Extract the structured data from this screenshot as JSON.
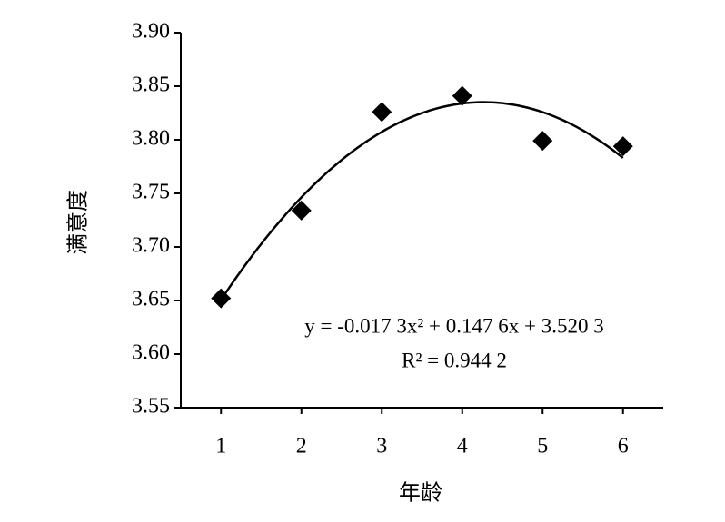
{
  "chart_data": {
    "type": "scatter",
    "x_label": "年龄",
    "y_label": "满意度",
    "x": [
      1,
      2,
      3,
      4,
      5,
      6
    ],
    "values": [
      3.652,
      3.734,
      3.826,
      3.841,
      3.799,
      3.794
    ],
    "color": "#000000",
    "xlim": [
      0.5,
      6.5
    ],
    "xticks": [
      1,
      2,
      3,
      4,
      5,
      6
    ],
    "ylim": [
      3.55,
      3.9
    ],
    "yticks": [
      3.55,
      {
        "value": 3.6,
        "label": "3.60"
      },
      3.65,
      {
        "value": 3.7,
        "label": "3.70"
      },
      3.75,
      {
        "value": 3.8,
        "label": "3.80"
      },
      3.85,
      {
        "value": 3.9,
        "label": "3.90"
      }
    ],
    "trendline": {
      "coefficients": [
        -0.0173,
        0.1476,
        3.5203
      ],
      "equation": "y = -0.017 3x² + 0.147 6x + 3.520 3",
      "r_squared_label": "R² = 0.944 2"
    }
  }
}
